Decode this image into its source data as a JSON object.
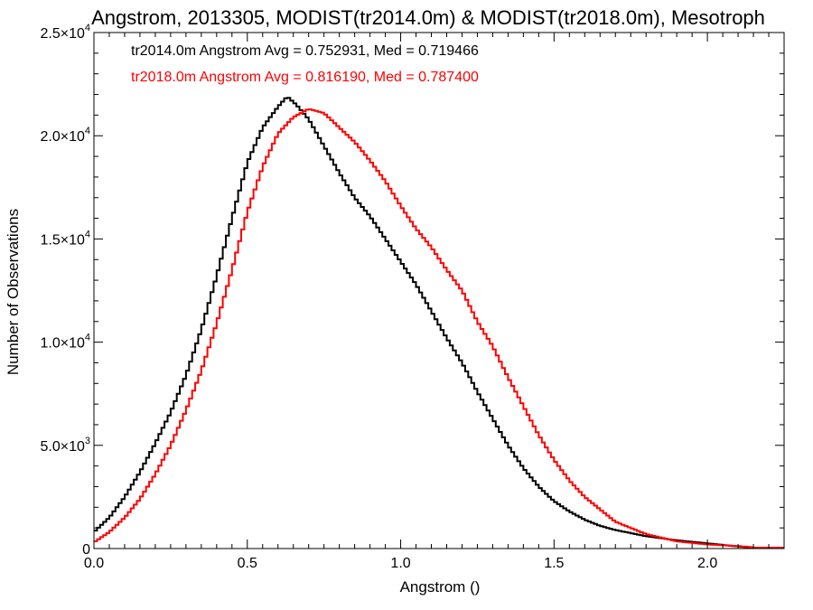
{
  "chart_data": {
    "type": "line",
    "title": "Angstrom, 2013305, MODIST(tr2014.0m) & MODIST(tr2018.0m), Mesotroph",
    "xlabel": "Angstrom ()",
    "ylabel": "Number of Observations",
    "xlim": [
      0.0,
      2.25
    ],
    "ylim": [
      0,
      25000
    ],
    "x_ticks": [
      "0.0",
      "0.5",
      "1.0",
      "1.5",
      "2.0"
    ],
    "y_ticks": [
      {
        "value": 0,
        "label": "0"
      },
      {
        "value": 5000,
        "mantissa": "5.0×10",
        "exp": "3"
      },
      {
        "value": 10000,
        "mantissa": "1.0×10",
        "exp": "4"
      },
      {
        "value": 15000,
        "mantissa": "1.5×10",
        "exp": "4"
      },
      {
        "value": 20000,
        "mantissa": "2.0×10",
        "exp": "4"
      },
      {
        "value": 25000,
        "mantissa": "2.5×10",
        "exp": "4"
      }
    ],
    "series": [
      {
        "name": "tr2014.0m",
        "color": "#000000",
        "x": [
          0.0,
          0.05,
          0.1,
          0.15,
          0.2,
          0.25,
          0.3,
          0.35,
          0.4,
          0.45,
          0.5,
          0.55,
          0.6,
          0.63,
          0.66,
          0.7,
          0.75,
          0.8,
          0.85,
          0.9,
          0.95,
          1.0,
          1.05,
          1.1,
          1.15,
          1.2,
          1.25,
          1.3,
          1.35,
          1.4,
          1.45,
          1.5,
          1.55,
          1.6,
          1.65,
          1.7,
          1.8,
          1.9,
          2.0,
          2.1,
          2.15
        ],
        "values": [
          800,
          1500,
          2500,
          3700,
          5100,
          6600,
          8400,
          10600,
          13200,
          16000,
          18700,
          20400,
          21400,
          21900,
          21500,
          20800,
          19500,
          18200,
          17000,
          16100,
          15000,
          13900,
          12800,
          11500,
          10200,
          9000,
          7600,
          6300,
          5000,
          3900,
          3000,
          2300,
          1800,
          1400,
          1100,
          900,
          600,
          400,
          250,
          100,
          40
        ]
      },
      {
        "name": "tr2018.0m",
        "color": "#ff0000",
        "x": [
          0.0,
          0.05,
          0.1,
          0.15,
          0.2,
          0.25,
          0.3,
          0.35,
          0.4,
          0.45,
          0.5,
          0.55,
          0.6,
          0.65,
          0.7,
          0.75,
          0.8,
          0.85,
          0.9,
          0.95,
          1.0,
          1.05,
          1.1,
          1.15,
          1.2,
          1.25,
          1.3,
          1.35,
          1.4,
          1.45,
          1.5,
          1.55,
          1.6,
          1.65,
          1.7,
          1.8,
          1.9,
          2.0,
          2.1,
          2.15
        ],
        "values": [
          300,
          800,
          1500,
          2400,
          3600,
          5000,
          6700,
          8600,
          10900,
          13500,
          16300,
          18500,
          20100,
          20900,
          21300,
          21100,
          20400,
          19700,
          18800,
          17800,
          16600,
          15500,
          14600,
          13500,
          12500,
          11000,
          9800,
          8300,
          6900,
          5500,
          4300,
          3300,
          2500,
          1900,
          1300,
          700,
          350,
          200,
          120,
          60
        ]
      }
    ],
    "legend": [
      {
        "text": "tr2014.0m Angstrom Avg = 0.752931, Med = 0.719466",
        "color": "#000000"
      },
      {
        "text": "tr2018.0m Angstrom Avg = 0.816190, Med = 0.787400",
        "color": "#ff0000"
      }
    ],
    "legend_placement": "top-left",
    "grid": false
  }
}
